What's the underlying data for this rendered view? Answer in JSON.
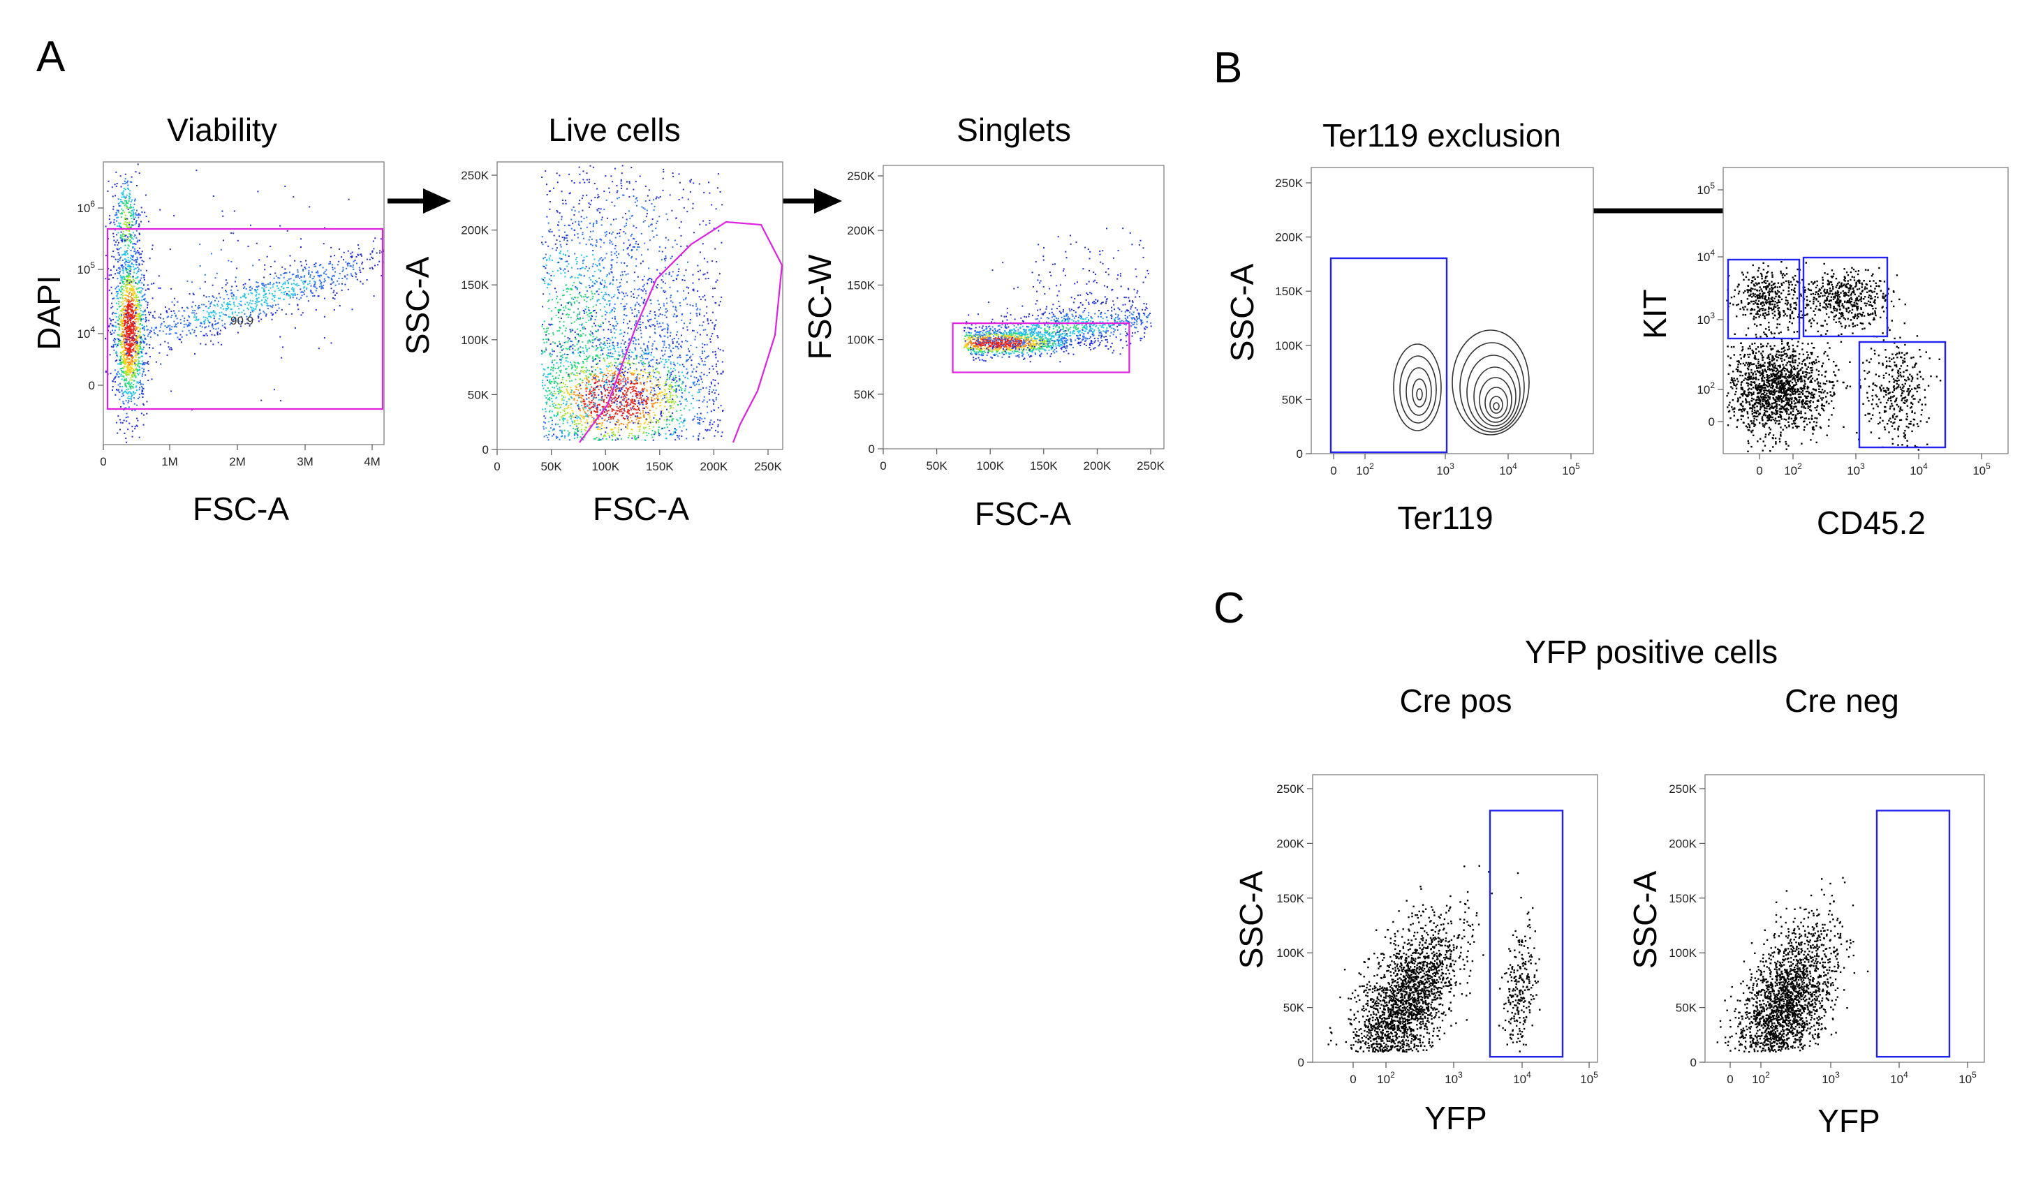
{
  "panels": {
    "A": "A",
    "B": "B",
    "C": "C"
  },
  "headings": {
    "yfp_group": "YFP positive cells"
  },
  "colors": {
    "gate_magenta": "#e020e0",
    "gate_blue": "#2222ee",
    "dots_black": "#000000"
  },
  "chart_data": [
    {
      "id": "viability",
      "type": "scatter",
      "title": "Viability",
      "xlabel": "FSC-A",
      "ylabel": "DAPI",
      "xlim": [
        0,
        4200000
      ],
      "x_ticks": [
        "0",
        "1M",
        "2M",
        "3M",
        "4M"
      ],
      "y_ticks": [
        "0",
        "10^4",
        "10^5",
        "10^6"
      ],
      "gates": [
        {
          "type": "rectangle",
          "label": "90.9",
          "color": "magenta"
        }
      ],
      "rendering": "density (pseudocolor)"
    },
    {
      "id": "live_cells",
      "type": "scatter",
      "title": "Live cells",
      "xlabel": "FSC-A",
      "ylabel": "SSC-A",
      "xlim": [
        0,
        262144
      ],
      "ylim": [
        0,
        262144
      ],
      "x_ticks": [
        "0",
        "50K",
        "100K",
        "150K",
        "200K",
        "250K"
      ],
      "y_ticks": [
        "0",
        "50K",
        "100K",
        "150K",
        "200K",
        "250K"
      ],
      "gates": [
        {
          "type": "polygon",
          "color": "magenta"
        }
      ],
      "rendering": "density (pseudocolor)"
    },
    {
      "id": "singlets",
      "type": "scatter",
      "title": "Singlets",
      "xlabel": "FSC-A",
      "ylabel": "FSC-W",
      "xlim": [
        0,
        262144
      ],
      "ylim": [
        0,
        262144
      ],
      "x_ticks": [
        "0",
        "50K",
        "100K",
        "150K",
        "200K",
        "250K"
      ],
      "y_ticks": [
        "0",
        "50K",
        "100K",
        "150K",
        "200K",
        "250K"
      ],
      "gates": [
        {
          "type": "rectangle",
          "color": "magenta",
          "x": [
            65000,
            230000
          ],
          "y": [
            70000,
            115000
          ]
        }
      ],
      "rendering": "density (pseudocolor)"
    },
    {
      "id": "ter119",
      "type": "contour",
      "title": "Ter119 exclusion",
      "xlabel": "Ter119",
      "ylabel": "SSC-A",
      "y_ticks": [
        "0",
        "50K",
        "100K",
        "150K",
        "200K",
        "250K"
      ],
      "x_ticks": [
        "0",
        "10^2",
        "10^3",
        "10^4",
        "10^5"
      ],
      "gates": [
        {
          "type": "rectangle",
          "color": "blue",
          "description": "Ter119 negative"
        }
      ]
    },
    {
      "id": "kit_cd45",
      "type": "scatter",
      "title": "",
      "xlabel": "CD45.2",
      "ylabel": "KIT",
      "x_ticks": [
        "0",
        "10^2",
        "10^3",
        "10^4",
        "10^5"
      ],
      "y_ticks": [
        "0",
        "10^2",
        "10^3",
        "10^4",
        "10^5"
      ],
      "gates": [
        {
          "type": "rectangle",
          "color": "blue",
          "description": "KIT+ CD45.2-"
        },
        {
          "type": "rectangle",
          "color": "blue",
          "description": "KIT+ CD45.2+"
        },
        {
          "type": "rectangle",
          "color": "blue",
          "description": "KIT- CD45.2+"
        }
      ],
      "rendering": "dot plot (black)"
    },
    {
      "id": "cre_pos",
      "type": "scatter",
      "title": "Cre pos",
      "xlabel": "YFP",
      "ylabel": "SSC-A",
      "ylim": [
        0,
        262144
      ],
      "x_ticks": [
        "0",
        "10^2",
        "10^3",
        "10^4",
        "10^5"
      ],
      "y_ticks": [
        "0",
        "50K",
        "100K",
        "150K",
        "200K",
        "250K"
      ],
      "gates": [
        {
          "type": "rectangle",
          "color": "blue",
          "description": "YFP positive",
          "y": [
            5000,
            230000
          ]
        }
      ],
      "rendering": "dot plot (black)"
    },
    {
      "id": "cre_neg",
      "type": "scatter",
      "title": "Cre neg",
      "xlabel": "YFP",
      "ylabel": "SSC-A",
      "ylim": [
        0,
        262144
      ],
      "x_ticks": [
        "0",
        "10^2",
        "10^3",
        "10^4",
        "10^5"
      ],
      "y_ticks": [
        "0",
        "50K",
        "100K",
        "150K",
        "200K",
        "250K"
      ],
      "gates": [
        {
          "type": "rectangle",
          "color": "blue",
          "description": "YFP positive",
          "y": [
            5000,
            230000
          ]
        }
      ],
      "rendering": "dot plot (black)"
    }
  ]
}
